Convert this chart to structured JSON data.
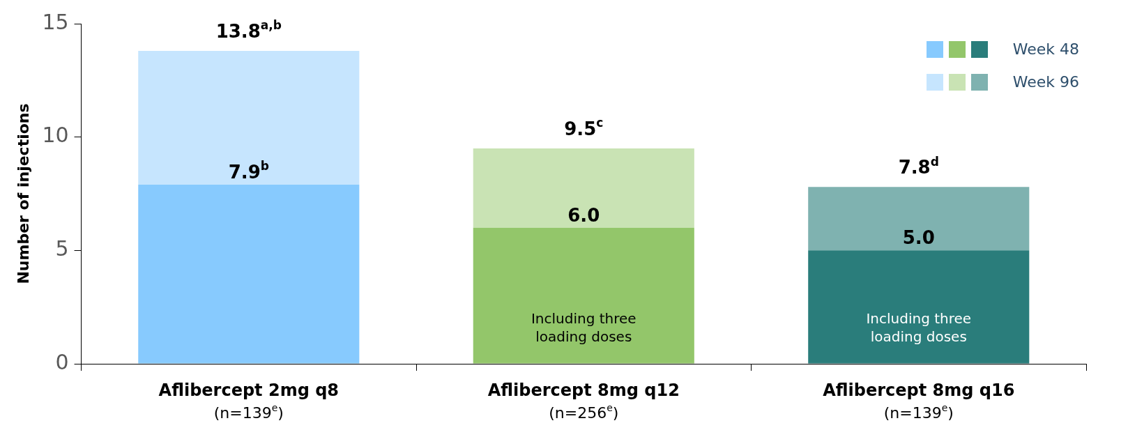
{
  "chart_data": {
    "type": "bar",
    "stacked": true,
    "ylabel": "Number of injections",
    "categories": [
      "Aflibercept 2mg q8\n(n=139$^{e}$)",
      "Aflibercept 8mg q12\n(n=256$^{e}$)",
      "Aflibercept 8mg q16\n(n=139$^{e}$)"
    ],
    "series": [
      {
        "name": "Week 48",
        "colors": [
          "#87cafe",
          "#93c66a",
          "#2a7d7b"
        ],
        "values": [
          7.9,
          6.0,
          5.0
        ],
        "value_labels": [
          "7.9$^{b}$",
          "6.0",
          "5.0"
        ]
      },
      {
        "name": "Week 96",
        "colors": [
          "#c6e5fe",
          "#c9e3b4",
          "#7fb2b0"
        ],
        "values": [
          5.9,
          3.5,
          2.8
        ]
      }
    ],
    "totals": [
      "13.8$^{a,b}$",
      "9.5$^{c}$",
      "7.8$^{d}$"
    ],
    "ylim": [
      0,
      15
    ],
    "yticks": [
      0,
      5,
      10,
      15
    ],
    "legend": "top right",
    "annotations": [
      "Including three loading doses",
      "Including three loading doses"
    ]
  }
}
